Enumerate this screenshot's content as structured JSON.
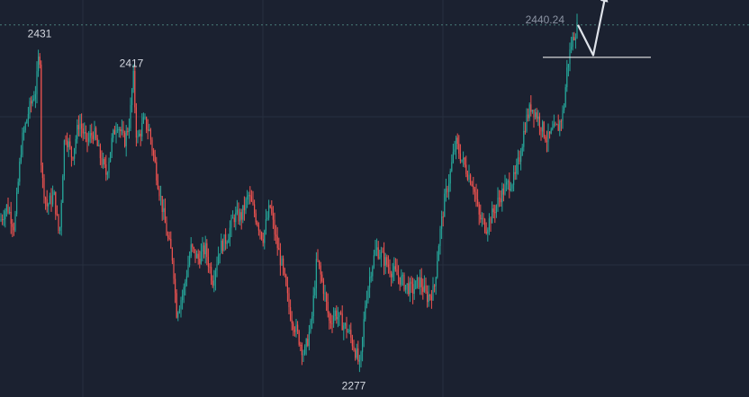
{
  "chart_data": {
    "type": "candlestick",
    "title": "",
    "xlabel": "",
    "ylabel": "",
    "ylim": [
      2265,
      2452
    ],
    "grid": true,
    "annotations": {
      "high_left": "2431",
      "high_mid": "2417",
      "low": "2277",
      "last_price": "2440.24"
    },
    "reference_level": 2425,
    "projection": [
      2440.24,
      2426,
      2455
    ],
    "colors": {
      "background": "#1b2130",
      "up": "#26a69a",
      "down": "#ef5350",
      "grid": "#27303f",
      "price_line": "#4a7f7a",
      "reference_line": "#e8e8e8",
      "arrow": "#dfe3ea"
    },
    "waypoints": [
      [
        0,
        2348
      ],
      [
        8,
        2355
      ],
      [
        16,
        2345
      ],
      [
        24,
        2385
      ],
      [
        32,
        2400
      ],
      [
        40,
        2410
      ],
      [
        44,
        2431
      ],
      [
        46,
        2370
      ],
      [
        52,
        2355
      ],
      [
        60,
        2360
      ],
      [
        66,
        2340
      ],
      [
        72,
        2390
      ],
      [
        80,
        2378
      ],
      [
        88,
        2395
      ],
      [
        96,
        2385
      ],
      [
        104,
        2390
      ],
      [
        110,
        2380
      ],
      [
        118,
        2370
      ],
      [
        124,
        2385
      ],
      [
        130,
        2395
      ],
      [
        138,
        2385
      ],
      [
        144,
        2395
      ],
      [
        148,
        2417
      ],
      [
        152,
        2385
      ],
      [
        160,
        2395
      ],
      [
        166,
        2390
      ],
      [
        172,
        2375
      ],
      [
        180,
        2355
      ],
      [
        186,
        2340
      ],
      [
        192,
        2330
      ],
      [
        196,
        2305
      ],
      [
        204,
        2315
      ],
      [
        212,
        2335
      ],
      [
        220,
        2330
      ],
      [
        228,
        2335
      ],
      [
        236,
        2320
      ],
      [
        244,
        2335
      ],
      [
        252,
        2340
      ],
      [
        260,
        2350
      ],
      [
        268,
        2350
      ],
      [
        276,
        2360
      ],
      [
        284,
        2350
      ],
      [
        292,
        2340
      ],
      [
        300,
        2355
      ],
      [
        306,
        2340
      ],
      [
        314,
        2325
      ],
      [
        322,
        2305
      ],
      [
        330,
        2295
      ],
      [
        338,
        2285
      ],
      [
        346,
        2300
      ],
      [
        352,
        2330
      ],
      [
        360,
        2315
      ],
      [
        366,
        2300
      ],
      [
        372,
        2305
      ],
      [
        380,
        2300
      ],
      [
        388,
        2295
      ],
      [
        396,
        2285
      ],
      [
        400,
        2278
      ],
      [
        406,
        2310
      ],
      [
        412,
        2325
      ],
      [
        418,
        2335
      ],
      [
        426,
        2330
      ],
      [
        434,
        2325
      ],
      [
        442,
        2322
      ],
      [
        450,
        2318
      ],
      [
        458,
        2315
      ],
      [
        466,
        2320
      ],
      [
        474,
        2312
      ],
      [
        482,
        2315
      ],
      [
        488,
        2340
      ],
      [
        494,
        2358
      ],
      [
        500,
        2370
      ],
      [
        506,
        2385
      ],
      [
        512,
        2378
      ],
      [
        518,
        2372
      ],
      [
        526,
        2365
      ],
      [
        532,
        2350
      ],
      [
        540,
        2345
      ],
      [
        548,
        2352
      ],
      [
        556,
        2360
      ],
      [
        564,
        2365
      ],
      [
        572,
        2368
      ],
      [
        578,
        2380
      ],
      [
        584,
        2395
      ],
      [
        590,
        2402
      ],
      [
        596,
        2398
      ],
      [
        602,
        2392
      ],
      [
        608,
        2386
      ],
      [
        614,
        2390
      ],
      [
        620,
        2392
      ],
      [
        626,
        2400
      ],
      [
        630,
        2420
      ],
      [
        634,
        2430
      ],
      [
        638,
        2436
      ],
      [
        642,
        2440
      ]
    ]
  }
}
